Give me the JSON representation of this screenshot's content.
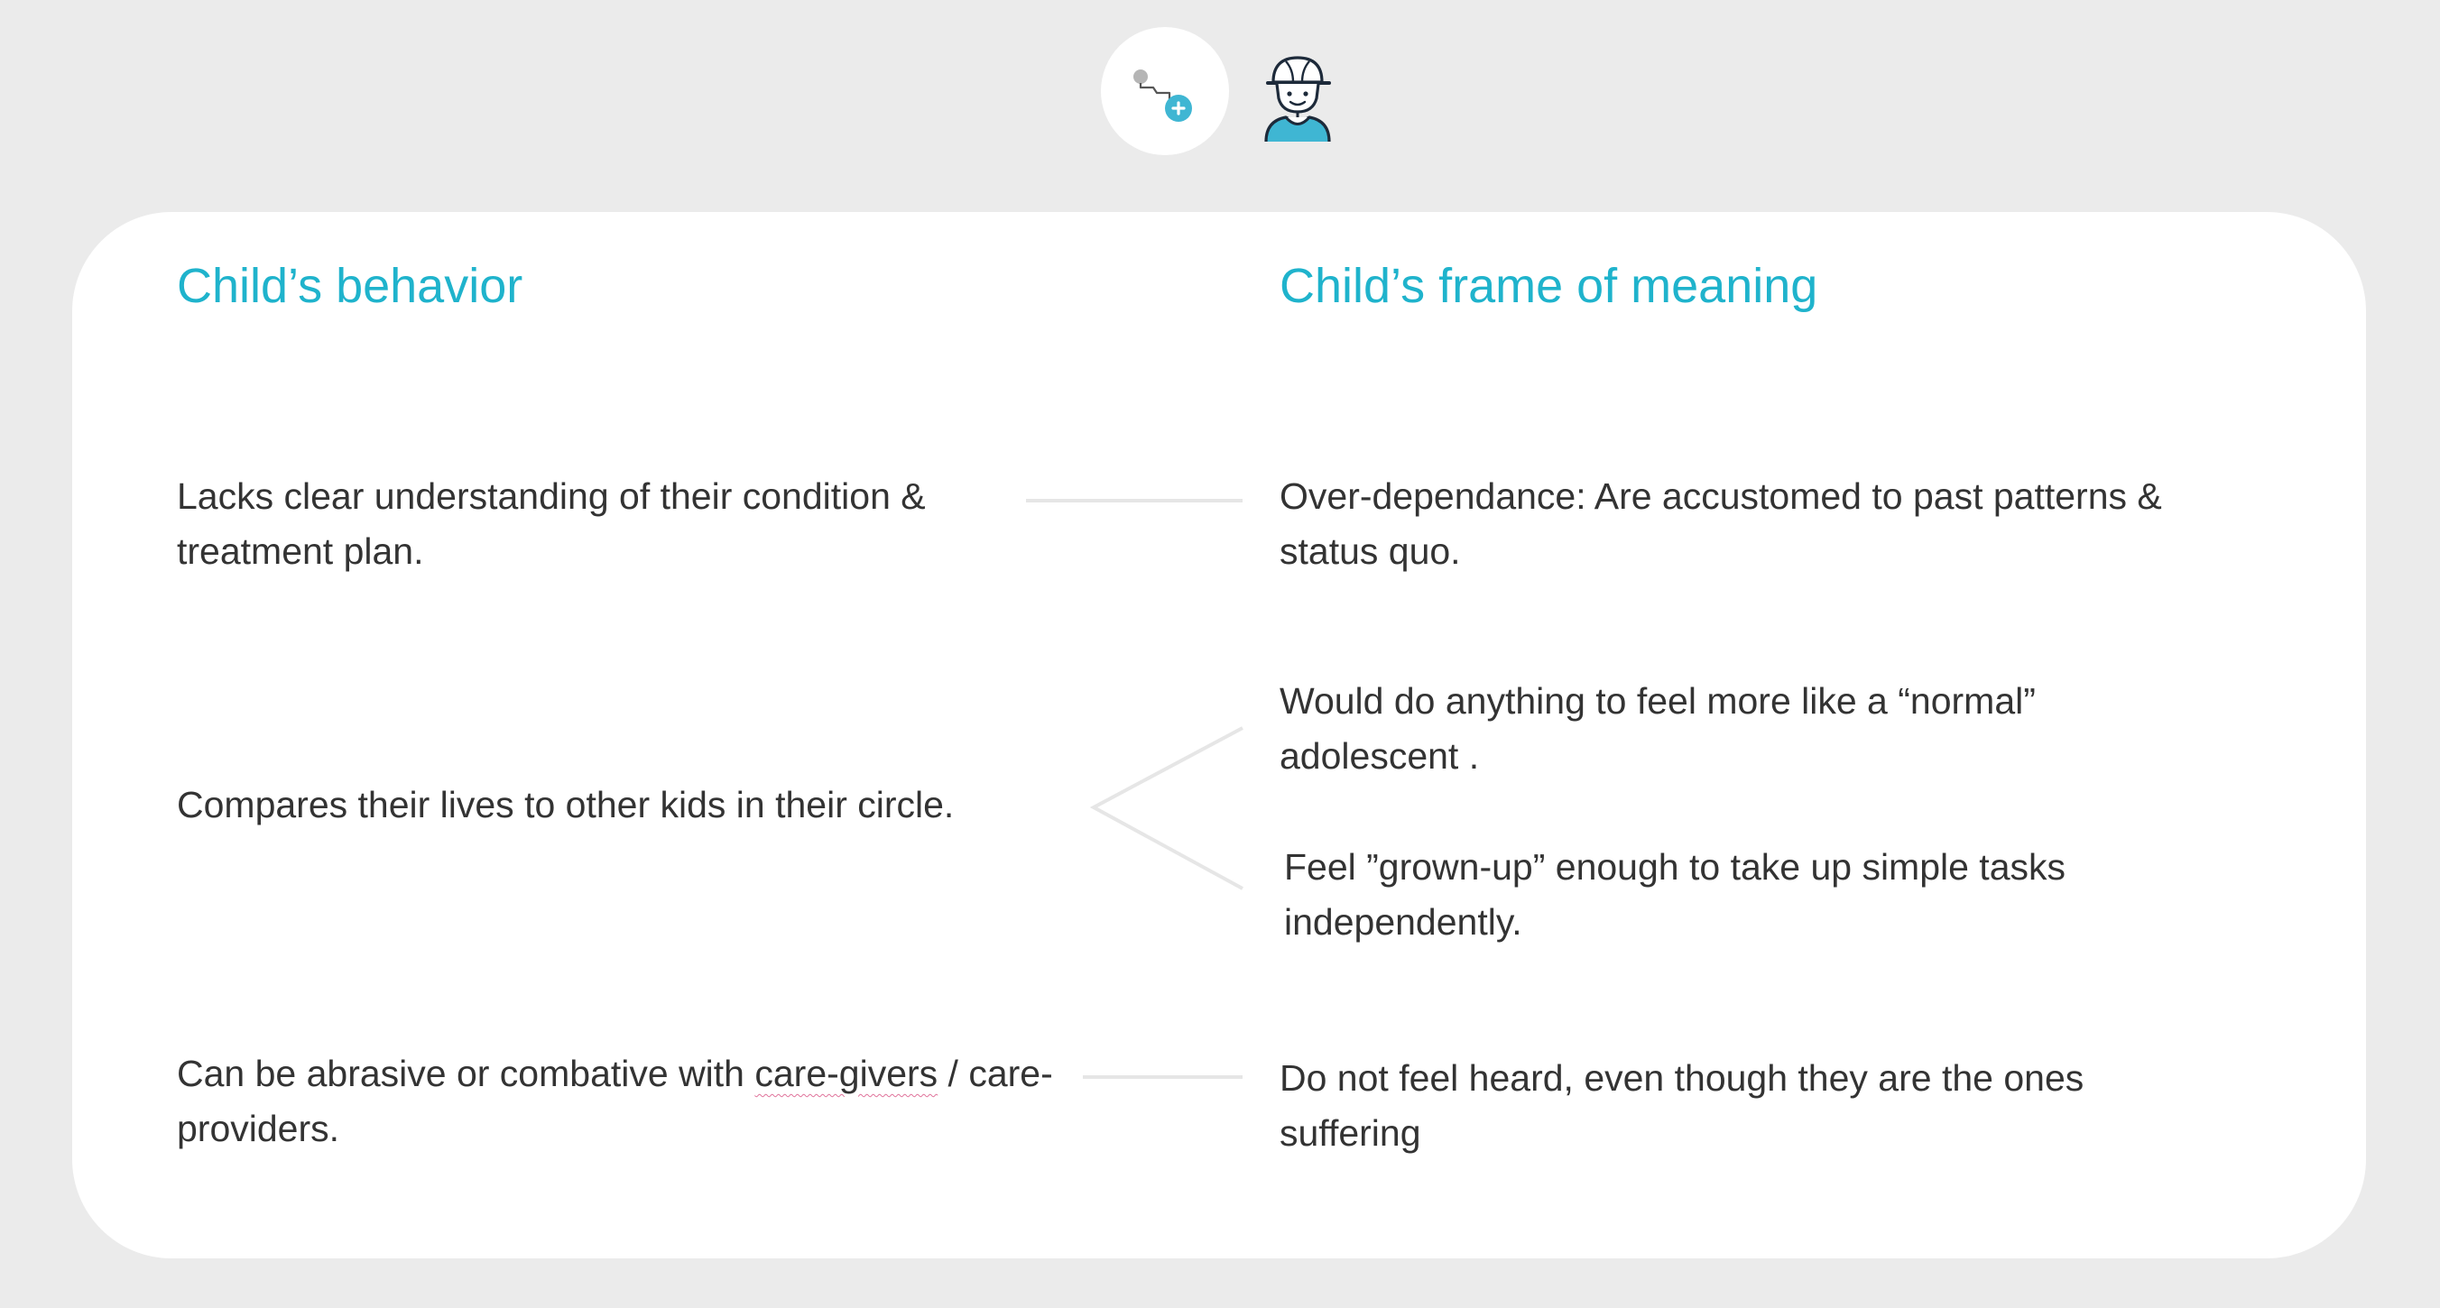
{
  "header": {
    "icons": [
      {
        "name": "stethoscope-icon",
        "color": "#3fb6d3"
      },
      {
        "name": "child-icon",
        "color": "#1d2a3a"
      }
    ]
  },
  "columns": {
    "left_heading": "Child’s behavior",
    "right_heading": "Child’s frame of meaning"
  },
  "rows": [
    {
      "behavior": "Lacks clear understanding of their condition & treatment plan.",
      "meanings": [
        "Over-dependance: Are accustomed to past patterns & status quo."
      ]
    },
    {
      "behavior": "Compares their lives to other kids in their circle.",
      "meanings": [
        "Would do anything to feel more like a “normal” adolescent .",
        "Feel ”grown-up” enough to take up simple tasks independently."
      ]
    },
    {
      "behavior_before": "Can be abrasive or combative with ",
      "behavior_underlined": "care-givers",
      "behavior_after": " / care-providers.",
      "meanings": [
        "Do not feel heard, even though they are the ones suffering"
      ]
    }
  ],
  "colors": {
    "accent": "#1fb3cc",
    "text": "#333333",
    "background": "#ebebeb",
    "card": "#ffffff",
    "connector": "#e6e6e6"
  }
}
